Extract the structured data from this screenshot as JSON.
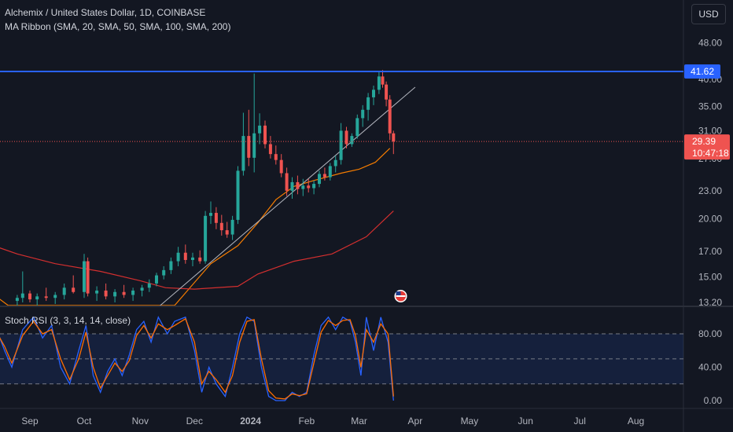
{
  "header": {
    "symbol_line": "Alchemix / United States Dollar, 1D, COINBASE",
    "indicator_line": "MA Ribbon (SMA, 20, SMA, 50, SMA, 100, SMA, 200)",
    "currency_button": "USD"
  },
  "rsi_panel": {
    "title": "Stoch RSI (3, 3, 14, 14, close)"
  },
  "colors": {
    "background": "#131722",
    "up": "#26a69a",
    "down": "#ef5350",
    "resistance": "#2962ff",
    "ma50": "#f57c00",
    "ma200": "#d32f2f",
    "rsi_k": "#2962ff",
    "rsi_d": "#ff6d00",
    "trendline": "#b2b5be"
  },
  "chart_data": [
    {
      "type": "candlestick",
      "title": "Alchemix / United States Dollar, 1D, COINBASE",
      "x_ticks": [
        "Sep",
        "Oct",
        "Nov",
        "Dec",
        "2024",
        "Feb",
        "Mar",
        "Apr",
        "May",
        "Jun",
        "Jul",
        "Aug"
      ],
      "y_scale": "log",
      "y_ticks": [
        "48.00",
        "40.00",
        "35.00",
        "31.00",
        "27.00",
        "23.00",
        "20.00",
        "17.00",
        "15.00",
        "13.20"
      ],
      "ylim": [
        13.0,
        52.0
      ],
      "price_labels": {
        "resistance": "41.62",
        "last_price": "29.39",
        "countdown": "10:47:18"
      },
      "resistance_level": 41.62,
      "last_price": 29.39,
      "trendline": {
        "from": [
          "2023-11-08",
          12.6
        ],
        "to": [
          "2024-04-01",
          38.5
        ]
      },
      "ma_series": [
        {
          "name": "SMA 50",
          "points": [
            [
              "2023-08-10",
              13.9
            ],
            [
              "2023-08-20",
              13.0
            ],
            [
              "2023-11-20",
              13.0
            ],
            [
              "2023-12-10",
              16.0
            ],
            [
              "2023-12-25",
              17.5
            ],
            [
              "2024-01-05",
              19.6
            ],
            [
              "2024-01-15",
              22.0
            ],
            [
              "2024-01-25",
              23.5
            ],
            [
              "2024-02-05",
              24.2
            ],
            [
              "2024-02-20",
              25.1
            ],
            [
              "2024-03-01",
              25.6
            ],
            [
              "2024-03-10",
              26.5
            ],
            [
              "2024-03-18",
              28.4
            ]
          ]
        },
        {
          "name": "SMA 200",
          "points": [
            [
              "2023-08-10",
              17.6
            ],
            [
              "2023-08-25",
              16.8
            ],
            [
              "2023-09-15",
              16.0
            ],
            [
              "2023-10-10",
              15.4
            ],
            [
              "2023-11-01",
              14.7
            ],
            [
              "2023-11-15",
              14.2
            ],
            [
              "2023-12-01",
              14.1
            ],
            [
              "2023-12-25",
              14.3
            ],
            [
              "2024-01-05",
              15.2
            ],
            [
              "2024-01-25",
              16.2
            ],
            [
              "2024-02-15",
              16.8
            ],
            [
              "2024-03-05",
              18.3
            ],
            [
              "2024-03-20",
              20.8
            ]
          ]
        }
      ],
      "candles": [
        [
          "2023-08-25",
          13.3,
          13.7,
          12.8,
          13.5
        ],
        [
          "2023-08-28",
          13.5,
          15.4,
          13.2,
          13.8
        ],
        [
          "2023-09-01",
          13.8,
          14.0,
          13.2,
          13.4
        ],
        [
          "2023-09-05",
          13.4,
          13.8,
          13.0,
          13.6
        ],
        [
          "2023-09-10",
          13.6,
          14.2,
          13.3,
          13.5
        ],
        [
          "2023-09-15",
          13.5,
          13.9,
          13.1,
          13.7
        ],
        [
          "2023-09-20",
          13.7,
          14.5,
          13.4,
          14.2
        ],
        [
          "2023-09-25",
          14.2,
          15.1,
          13.8,
          13.9
        ],
        [
          "2023-10-01",
          13.9,
          16.8,
          13.5,
          16.2
        ],
        [
          "2023-10-03",
          16.2,
          16.5,
          13.6,
          13.8
        ],
        [
          "2023-10-08",
          13.8,
          14.3,
          13.3,
          14.0
        ],
        [
          "2023-10-13",
          14.0,
          14.5,
          13.4,
          13.6
        ],
        [
          "2023-10-18",
          13.6,
          14.1,
          13.2,
          13.9
        ],
        [
          "2023-10-23",
          13.9,
          14.4,
          13.5,
          13.7
        ],
        [
          "2023-10-28",
          13.7,
          14.2,
          13.3,
          14.0
        ],
        [
          "2023-11-02",
          14.0,
          14.4,
          13.6,
          14.2
        ],
        [
          "2023-11-06",
          14.2,
          14.8,
          13.9,
          14.5
        ],
        [
          "2023-11-10",
          14.5,
          15.3,
          14.3,
          15.1
        ],
        [
          "2023-11-14",
          15.1,
          15.8,
          14.8,
          15.5
        ],
        [
          "2023-11-18",
          15.5,
          16.5,
          15.2,
          16.2
        ],
        [
          "2023-11-22",
          16.2,
          17.4,
          15.8,
          16.9
        ],
        [
          "2023-11-26",
          16.9,
          17.6,
          16.0,
          16.3
        ],
        [
          "2023-11-30",
          16.3,
          16.9,
          15.8,
          16.5
        ],
        [
          "2023-12-04",
          16.5,
          17.1,
          16.0,
          16.2
        ],
        [
          "2023-12-07",
          16.2,
          20.8,
          16.0,
          20.3
        ],
        [
          "2023-12-10",
          20.3,
          21.8,
          19.5,
          20.6
        ],
        [
          "2023-12-13",
          20.6,
          21.2,
          19.0,
          19.6
        ],
        [
          "2023-12-16",
          19.6,
          20.4,
          18.4,
          18.9
        ],
        [
          "2023-12-19",
          18.9,
          19.7,
          18.2,
          18.5
        ],
        [
          "2023-12-22",
          18.5,
          20.3,
          18.0,
          19.9
        ],
        [
          "2023-12-25",
          19.9,
          26.0,
          19.5,
          25.4
        ],
        [
          "2023-12-28",
          25.4,
          33.9,
          24.8,
          30.2
        ],
        [
          "2023-12-31",
          30.2,
          34.4,
          26.0,
          27.1
        ],
        [
          "2024-01-03",
          27.1,
          41.2,
          25.2,
          30.6
        ],
        [
          "2024-01-06",
          30.6,
          33.8,
          29.0,
          31.8
        ],
        [
          "2024-01-09",
          31.8,
          32.6,
          28.4,
          29.0
        ],
        [
          "2024-01-12",
          29.0,
          30.2,
          27.0,
          27.6
        ],
        [
          "2024-01-15",
          27.6,
          28.8,
          26.2,
          26.8
        ],
        [
          "2024-01-18",
          26.8,
          27.6,
          24.6,
          25.1
        ],
        [
          "2024-01-21",
          25.1,
          25.8,
          22.4,
          23.0
        ],
        [
          "2024-01-24",
          23.0,
          24.6,
          22.1,
          24.0
        ],
        [
          "2024-01-27",
          24.0,
          24.8,
          22.6,
          23.2
        ],
        [
          "2024-01-30",
          23.2,
          24.4,
          22.4,
          23.6
        ],
        [
          "2024-02-02",
          23.6,
          24.4,
          22.8,
          23.3
        ],
        [
          "2024-02-05",
          23.3,
          24.2,
          22.6,
          23.8
        ],
        [
          "2024-02-08",
          23.8,
          25.4,
          23.4,
          25.0
        ],
        [
          "2024-02-11",
          25.0,
          25.8,
          24.2,
          24.6
        ],
        [
          "2024-02-14",
          24.6,
          26.4,
          24.2,
          26.0
        ],
        [
          "2024-02-17",
          26.0,
          27.4,
          25.2,
          26.8
        ],
        [
          "2024-02-20",
          26.8,
          32.2,
          26.2,
          31.0
        ],
        [
          "2024-02-23",
          31.0,
          31.6,
          28.4,
          29.0
        ],
        [
          "2024-02-26",
          29.0,
          30.6,
          28.6,
          30.2
        ],
        [
          "2024-02-29",
          30.2,
          33.6,
          29.8,
          33.0
        ],
        [
          "2024-03-03",
          33.0,
          35.2,
          31.6,
          34.4
        ],
        [
          "2024-03-06",
          34.4,
          37.4,
          32.6,
          36.6
        ],
        [
          "2024-03-09",
          36.6,
          38.8,
          35.2,
          38.0
        ],
        [
          "2024-03-12",
          38.0,
          41.6,
          37.2,
          40.6
        ],
        [
          "2024-03-14",
          40.6,
          41.9,
          38.4,
          39.0
        ],
        [
          "2024-03-16",
          39.0,
          39.6,
          35.0,
          36.2
        ],
        [
          "2024-03-18",
          36.2,
          37.0,
          29.6,
          30.6
        ],
        [
          "2024-03-20",
          30.6,
          31.0,
          27.6,
          29.39
        ]
      ]
    },
    {
      "type": "line",
      "title": "Stoch RSI (3, 3, 14, 14, close)",
      "y_ticks": [
        "80.00",
        "40.00",
        "0.00"
      ],
      "ylim": [
        -8,
        108
      ],
      "bands": {
        "upper": 80,
        "middle": 50,
        "lower": 20
      },
      "series": [
        {
          "points": [
            [
              "2023-08-05",
              80
            ],
            [
              "2023-08-12",
              95
            ],
            [
              "2023-08-18",
              60
            ],
            [
              "2023-08-22",
              40
            ],
            [
              "2023-08-28",
              85
            ],
            [
              "2023-09-03",
              100
            ],
            [
              "2023-09-08",
              75
            ],
            [
              "2023-09-13",
              90
            ],
            [
              "2023-09-18",
              40
            ],
            [
              "2023-09-23",
              20
            ],
            [
              "2023-09-28",
              60
            ],
            [
              "2023-10-02",
              90
            ],
            [
              "2023-10-06",
              30
            ],
            [
              "2023-10-10",
              10
            ],
            [
              "2023-10-14",
              35
            ],
            [
              "2023-10-18",
              50
            ],
            [
              "2023-10-22",
              30
            ],
            [
              "2023-10-26",
              55
            ],
            [
              "2023-10-30",
              85
            ],
            [
              "2023-11-03",
              95
            ],
            [
              "2023-11-07",
              70
            ],
            [
              "2023-11-11",
              100
            ],
            [
              "2023-11-16",
              80
            ],
            [
              "2023-11-20",
              95
            ],
            [
              "2023-11-26",
              100
            ],
            [
              "2023-12-01",
              60
            ],
            [
              "2023-12-05",
              10
            ],
            [
              "2023-12-09",
              40
            ],
            [
              "2023-12-13",
              20
            ],
            [
              "2023-12-18",
              5
            ],
            [
              "2023-12-22",
              40
            ],
            [
              "2023-12-26",
              80
            ],
            [
              "2023-12-30",
              100
            ],
            [
              "2024-01-03",
              95
            ],
            [
              "2024-01-07",
              40
            ],
            [
              "2024-01-11",
              5
            ],
            [
              "2024-01-15",
              0
            ],
            [
              "2024-01-20",
              0
            ],
            [
              "2024-01-24",
              10
            ],
            [
              "2024-01-28",
              5
            ],
            [
              "2024-02-01",
              10
            ],
            [
              "2024-02-05",
              55
            ],
            [
              "2024-02-09",
              90
            ],
            [
              "2024-02-13",
              100
            ],
            [
              "2024-02-17",
              85
            ],
            [
              "2024-02-21",
              100
            ],
            [
              "2024-02-25",
              95
            ],
            [
              "2024-02-28",
              70
            ],
            [
              "2024-03-02",
              30
            ],
            [
              "2024-03-05",
              100
            ],
            [
              "2024-03-09",
              60
            ],
            [
              "2024-03-13",
              100
            ],
            [
              "2024-03-17",
              70
            ],
            [
              "2024-03-20",
              0
            ]
          ]
        },
        {
          "points": [
            [
              "2023-08-05",
              75
            ],
            [
              "2023-08-12",
              88
            ],
            [
              "2023-08-18",
              65
            ],
            [
              "2023-08-22",
              45
            ],
            [
              "2023-08-28",
              78
            ],
            [
              "2023-09-03",
              95
            ],
            [
              "2023-09-08",
              80
            ],
            [
              "2023-09-13",
              85
            ],
            [
              "2023-09-18",
              50
            ],
            [
              "2023-09-23",
              25
            ],
            [
              "2023-09-28",
              50
            ],
            [
              "2023-10-02",
              82
            ],
            [
              "2023-10-06",
              40
            ],
            [
              "2023-10-10",
              15
            ],
            [
              "2023-10-14",
              30
            ],
            [
              "2023-10-18",
              45
            ],
            [
              "2023-10-22",
              35
            ],
            [
              "2023-10-26",
              48
            ],
            [
              "2023-10-30",
              78
            ],
            [
              "2023-11-03",
              90
            ],
            [
              "2023-11-07",
              75
            ],
            [
              "2023-11-11",
              92
            ],
            [
              "2023-11-16",
              85
            ],
            [
              "2023-11-20",
              90
            ],
            [
              "2023-11-26",
              98
            ],
            [
              "2023-12-01",
              70
            ],
            [
              "2023-12-05",
              20
            ],
            [
              "2023-12-09",
              35
            ],
            [
              "2023-12-13",
              25
            ],
            [
              "2023-12-18",
              10
            ],
            [
              "2023-12-22",
              30
            ],
            [
              "2023-12-26",
              70
            ],
            [
              "2023-12-30",
              95
            ],
            [
              "2024-01-03",
              97
            ],
            [
              "2024-01-07",
              50
            ],
            [
              "2024-01-11",
              12
            ],
            [
              "2024-01-15",
              3
            ],
            [
              "2024-01-20",
              2
            ],
            [
              "2024-01-24",
              8
            ],
            [
              "2024-01-28",
              6
            ],
            [
              "2024-02-01",
              8
            ],
            [
              "2024-02-05",
              45
            ],
            [
              "2024-02-09",
              82
            ],
            [
              "2024-02-13",
              96
            ],
            [
              "2024-02-17",
              90
            ],
            [
              "2024-02-21",
              96
            ],
            [
              "2024-02-25",
              97
            ],
            [
              "2024-02-28",
              78
            ],
            [
              "2024-03-02",
              40
            ],
            [
              "2024-03-05",
              85
            ],
            [
              "2024-03-09",
              70
            ],
            [
              "2024-03-13",
              92
            ],
            [
              "2024-03-17",
              80
            ],
            [
              "2024-03-20",
              5
            ]
          ]
        }
      ]
    }
  ]
}
